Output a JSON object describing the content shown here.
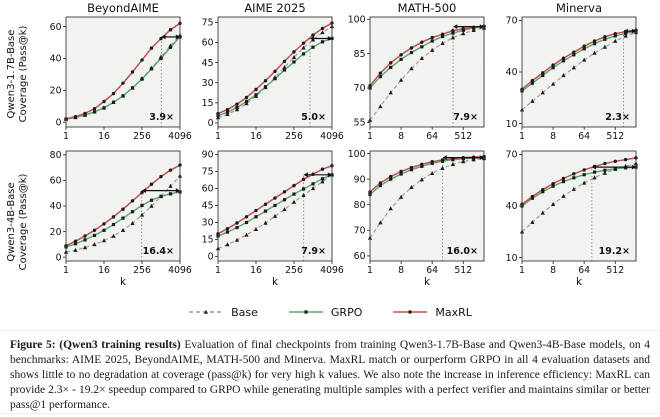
{
  "figure": {
    "row_labels": [
      {
        "line1": "Qwen3-1.7B-Base",
        "line2": "Coverage (Pass@k)"
      },
      {
        "line1": "Qwen3-4B-Base",
        "line2": "Coverage (Pass@k)"
      }
    ],
    "legend": {
      "items": [
        {
          "label": "Base",
          "color": "#999999",
          "style": "dashed",
          "marker": "triangle"
        },
        {
          "label": "GRPO",
          "color": "#55a868",
          "style": "solid",
          "marker": "square"
        },
        {
          "label": "MaxRL",
          "color": "#c44e52",
          "style": "solid",
          "marker": "circle"
        }
      ]
    },
    "colors": {
      "base": "#999999",
      "grpo": "#55a868",
      "maxrl": "#c44e52",
      "marker": "#1b1b1b",
      "plot_bg": "#f2f2f0",
      "spine": "#3a3a3a"
    }
  },
  "chart_data": [
    {
      "type": "line",
      "row": 0,
      "col": 0,
      "title": "BeyondAIME",
      "model": "Qwen3-1.7B-Base",
      "xscale": "log",
      "x": [
        1,
        2,
        4,
        8,
        16,
        32,
        64,
        128,
        256,
        512,
        1024,
        2048,
        4096
      ],
      "xticks": [
        1,
        16,
        256,
        4096
      ],
      "yticks": [
        0,
        20,
        40,
        60
      ],
      "ylim": [
        -3,
        66
      ],
      "xlabel": "",
      "speedup": {
        "label": "3.9×",
        "from_x": 1050,
        "to_x": 4096,
        "arrow_y": 53.5
      },
      "series": [
        {
          "name": "Base",
          "values": [
            2,
            3,
            4.5,
            6.5,
            9,
            12.5,
            16.5,
            21.5,
            27.5,
            34,
            41,
            48,
            54.5
          ]
        },
        {
          "name": "GRPO",
          "values": [
            2,
            3,
            4.5,
            6.5,
            9,
            12.5,
            16.5,
            21.5,
            27,
            33.5,
            40,
            47,
            53.5
          ]
        },
        {
          "name": "MaxRL",
          "values": [
            2,
            3.5,
            5.5,
            8.5,
            13,
            18,
            24.5,
            31.5,
            39,
            46.5,
            52.5,
            58,
            62
          ]
        }
      ]
    },
    {
      "type": "line",
      "row": 0,
      "col": 1,
      "title": "AIME 2025",
      "model": "Qwen3-1.7B-Base",
      "xscale": "log",
      "x": [
        1,
        2,
        4,
        8,
        16,
        32,
        64,
        128,
        256,
        512,
        1024,
        2048,
        4096
      ],
      "xticks": [
        1,
        16,
        256,
        4096
      ],
      "yticks": [
        0,
        15,
        30,
        45,
        60,
        75
      ],
      "ylim": [
        -3,
        79
      ],
      "xlabel": "",
      "speedup": {
        "label": "5.0×",
        "from_x": 819,
        "to_x": 4096,
        "arrow_y": 63
      },
      "series": [
        {
          "name": "Base",
          "values": [
            4,
            6.5,
            10,
            14.5,
            20,
            26.5,
            34,
            41.5,
            49,
            56,
            62,
            67.5,
            72
          ]
        },
        {
          "name": "GRPO",
          "values": [
            5.5,
            8,
            11.5,
            16,
            21,
            27,
            33,
            39.5,
            45.5,
            51.5,
            56.5,
            60.5,
            63
          ]
        },
        {
          "name": "MaxRL",
          "values": [
            7,
            10,
            14,
            19,
            25,
            31.5,
            38.5,
            46,
            53,
            59.5,
            65.5,
            70.5,
            74.5
          ]
        }
      ]
    },
    {
      "type": "line",
      "row": 0,
      "col": 2,
      "title": "MATH-500",
      "model": "Qwen3-1.7B-Base",
      "xscale": "log",
      "x": [
        1,
        2,
        4,
        8,
        16,
        32,
        64,
        128,
        256,
        512,
        1024,
        2048
      ],
      "xticks": [
        1,
        8,
        64,
        512
      ],
      "yticks": [
        55,
        70,
        85,
        100
      ],
      "ylim": [
        53,
        101
      ],
      "xlabel": "",
      "speedup": {
        "label": "7.9×",
        "from_x": 259,
        "to_x": 2048,
        "arrow_y": 96.8
      },
      "series": [
        {
          "name": "Base",
          "values": [
            56,
            62,
            68,
            73.5,
            78.5,
            83,
            86.5,
            89.5,
            92,
            93.8,
            95.2,
            96.2
          ]
        },
        {
          "name": "GRPO",
          "values": [
            70,
            75,
            79,
            82.5,
            85.5,
            88,
            90.5,
            92.5,
            94,
            95.2,
            96.2,
            96.8
          ]
        },
        {
          "name": "MaxRL",
          "values": [
            71,
            76.5,
            81,
            84.5,
            87.5,
            90,
            92,
            93.5,
            95,
            95.9,
            96.5,
            97
          ]
        }
      ]
    },
    {
      "type": "line",
      "row": 0,
      "col": 3,
      "title": "Minerva",
      "model": "Qwen3-1.7B-Base",
      "xscale": "log",
      "x": [
        1,
        2,
        4,
        8,
        16,
        32,
        64,
        128,
        256,
        512,
        1024,
        2048
      ],
      "xticks": [
        1,
        8,
        64,
        512
      ],
      "yticks": [
        10,
        40,
        70
      ],
      "ylim": [
        8,
        72
      ],
      "xlabel": "",
      "speedup": {
        "label": "2.3×",
        "from_x": 890,
        "to_x": 2048,
        "arrow_y": 63.8
      },
      "series": [
        {
          "name": "Base",
          "values": [
            18,
            23,
            28,
            33,
            38,
            42.5,
            47,
            51,
            54.5,
            58,
            61,
            63
          ]
        },
        {
          "name": "GRPO",
          "values": [
            29,
            33.5,
            38,
            42.5,
            46.5,
            50,
            53.5,
            56.5,
            59,
            61,
            62.5,
            63.8
          ]
        },
        {
          "name": "MaxRL",
          "values": [
            30,
            35,
            39.5,
            44,
            48,
            51.5,
            55,
            58,
            60.5,
            62.3,
            63.5,
            64.3
          ]
        }
      ]
    },
    {
      "type": "line",
      "row": 1,
      "col": 0,
      "title": "",
      "model": "Qwen3-4B-Base",
      "xscale": "log",
      "x": [
        1,
        2,
        4,
        8,
        16,
        32,
        64,
        128,
        256,
        512,
        1024,
        2048,
        4096
      ],
      "xticks": [
        1,
        16,
        256,
        4096
      ],
      "yticks": [
        0,
        20,
        40,
        60,
        80
      ],
      "ylim": [
        -3,
        83
      ],
      "xlabel": "k",
      "speedup": {
        "label": "16.4×",
        "from_x": 250,
        "to_x": 4096,
        "arrow_y": 52
      },
      "series": [
        {
          "name": "Base",
          "values": [
            4,
            5.5,
            7.5,
            10,
            13,
            16.5,
            21,
            26.5,
            33,
            40,
            47.5,
            55.5,
            63.5
          ]
        },
        {
          "name": "GRPO",
          "values": [
            8,
            10.5,
            13.5,
            17,
            21,
            25.5,
            30.5,
            35.5,
            40.5,
            44.5,
            47.5,
            49.5,
            51
          ]
        },
        {
          "name": "MaxRL",
          "values": [
            9,
            12.5,
            16.5,
            21,
            26,
            31.5,
            37.5,
            44,
            50.5,
            57,
            63,
            68,
            72
          ]
        }
      ]
    },
    {
      "type": "line",
      "row": 1,
      "col": 1,
      "title": "",
      "model": "Qwen3-4B-Base",
      "xscale": "log",
      "x": [
        1,
        2,
        4,
        8,
        16,
        32,
        64,
        128,
        256,
        512,
        1024,
        2048,
        4096
      ],
      "xticks": [
        1,
        16,
        256,
        4096
      ],
      "yticks": [
        0,
        15,
        30,
        45,
        60,
        75,
        90
      ],
      "ylim": [
        -4,
        93
      ],
      "xlabel": "k",
      "speedup": {
        "label": "7.9×",
        "from_x": 518,
        "to_x": 4096,
        "arrow_y": 72
      },
      "series": [
        {
          "name": "Base",
          "values": [
            7,
            10.5,
            14.5,
            19,
            24,
            29.5,
            35.5,
            41.5,
            48,
            54,
            60,
            66,
            72
          ]
        },
        {
          "name": "GRPO",
          "values": [
            18,
            21.5,
            25.5,
            30,
            35,
            40,
            45,
            50,
            55,
            59.5,
            64,
            68.5,
            72
          ]
        },
        {
          "name": "MaxRL",
          "values": [
            20,
            24.5,
            29.5,
            35,
            40.5,
            46,
            51.5,
            57,
            62.5,
            68,
            72.5,
            77,
            80
          ]
        }
      ]
    },
    {
      "type": "line",
      "row": 1,
      "col": 2,
      "title": "",
      "model": "Qwen3-4B-Base",
      "xscale": "log",
      "x": [
        1,
        2,
        4,
        8,
        16,
        32,
        64,
        128,
        256,
        512,
        1024,
        2048
      ],
      "xticks": [
        1,
        8,
        64,
        512
      ],
      "yticks": [
        60,
        70,
        80,
        90,
        100
      ],
      "ylim": [
        58,
        101
      ],
      "xlabel": "k",
      "speedup": {
        "label": "16.0×",
        "from_x": 128,
        "to_x": 2048,
        "arrow_y": 98.4
      },
      "series": [
        {
          "name": "Base",
          "values": [
            67,
            73,
            78.5,
            83,
            86.8,
            89.8,
            92.3,
            94.3,
            95.8,
            96.9,
            97.6,
            98.1
          ]
        },
        {
          "name": "GRPO",
          "values": [
            84,
            87.5,
            90,
            92,
            93.7,
            95,
            96.2,
            97,
            97.6,
            98,
            98.2,
            98.4
          ]
        },
        {
          "name": "MaxRL",
          "values": [
            85,
            88.5,
            91,
            93,
            94.5,
            95.8,
            96.8,
            97.5,
            98,
            98.4,
            98.6,
            98.8
          ]
        }
      ]
    },
    {
      "type": "line",
      "row": 1,
      "col": 3,
      "title": "",
      "model": "Qwen3-4B-Base",
      "xscale": "log",
      "x": [
        1,
        2,
        4,
        8,
        16,
        32,
        64,
        128,
        256,
        512,
        1024,
        2048
      ],
      "xticks": [
        1,
        8,
        64,
        512
      ],
      "yticks": [
        10,
        40,
        70
      ],
      "ylim": [
        8,
        72
      ],
      "xlabel": "k",
      "speedup": {
        "label": "19.2×",
        "from_x": 107,
        "to_x": 2048,
        "arrow_y": 62.6
      },
      "series": [
        {
          "name": "Base",
          "values": [
            25,
            30.5,
            36,
            41,
            45.7,
            49.8,
            53.4,
            56.5,
            59.2,
            61.4,
            63.2,
            64.7
          ]
        },
        {
          "name": "GRPO",
          "values": [
            40,
            44.5,
            48.3,
            51.5,
            54.2,
            56.4,
            58.2,
            59.7,
            60.8,
            61.6,
            62.2,
            62.6
          ]
        },
        {
          "name": "MaxRL",
          "values": [
            41,
            45.5,
            49.5,
            53,
            56,
            58.7,
            61,
            63,
            64.7,
            66,
            67,
            68
          ]
        }
      ]
    }
  ],
  "caption": {
    "bold": "Figure 5: (Qwen3 training results)",
    "text": " Evaluation of final checkpoints from training Qwen3-1.7B-Base and Qwen3-4B-Base models, on 4 benchmarks: AIME 2025, BeyondAIME, MATH-500 and Minerva. MaxRL match or ourperform GRPO in all 4 evaluation datasets and shows little to no degradation at coverage (pass@k) for very high k values. We also note the increase in inference efficiency: MaxRL can provide 2.3× - 19.2× speedup compared to GRPO while generating multiple samples with a perfect verifier and maintains similar or better pass@1 performance."
  }
}
